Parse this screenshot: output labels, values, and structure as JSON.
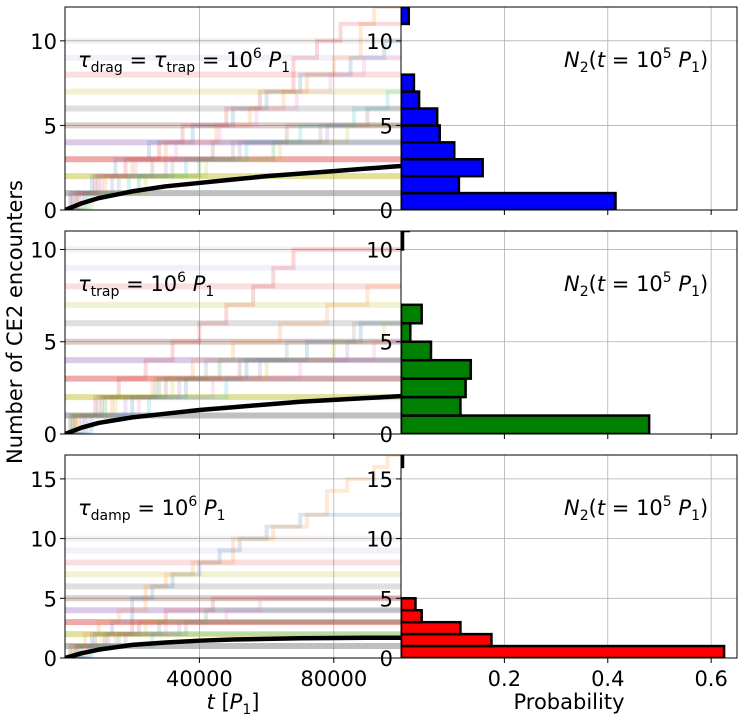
{
  "figure": {
    "ylabel": "Number of CE2 encounters",
    "xlabel_left": "t [P1]",
    "xlabel_right": "Probability"
  },
  "chart_data": [
    {
      "type": "line",
      "panel": "top-left",
      "annotation": "τdrag = τtrap = 10^6 P1",
      "xlim": [
        0,
        100000
      ],
      "ylim": [
        0,
        12
      ],
      "y_ticks": [
        0,
        5,
        10
      ],
      "x_ticks": [
        40000,
        80000
      ],
      "x_tick_labels_shown": false,
      "grid": true,
      "mean_curve": {
        "x": [
          0,
          5000,
          10000,
          20000,
          30000,
          40000,
          50000,
          60000,
          70000,
          80000,
          90000,
          100000
        ],
        "y": [
          0,
          0.4,
          0.7,
          1.1,
          1.4,
          1.6,
          1.8,
          2.0,
          2.15,
          2.3,
          2.45,
          2.6
        ]
      },
      "trajectories": [
        {
          "color": "#1f77b4",
          "steps": [
            [
              2000,
              1
            ],
            [
              8000,
              2
            ],
            [
              15000,
              3
            ],
            [
              25000,
              4
            ],
            [
              38000,
              5
            ],
            [
              50000,
              6
            ],
            [
              60000,
              7
            ],
            [
              70000,
              8
            ],
            [
              85000,
              9
            ],
            [
              95000,
              10
            ]
          ]
        },
        {
          "color": "#ff7f0e",
          "steps": [
            [
              3000,
              1
            ],
            [
              12000,
              2
            ],
            [
              20000,
              3
            ],
            [
              30000,
              4
            ],
            [
              45000,
              5
            ],
            [
              55000,
              6
            ],
            [
              65000,
              7
            ],
            [
              72000,
              8
            ],
            [
              80000,
              9
            ],
            [
              88000,
              11
            ],
            [
              92000,
              12
            ]
          ]
        },
        {
          "color": "#d62728",
          "steps": [
            [
              4000,
              1
            ],
            [
              9000,
              2
            ],
            [
              18000,
              3
            ],
            [
              28000,
              4
            ],
            [
              35000,
              5
            ],
            [
              48000,
              6
            ],
            [
              58000,
              7
            ],
            [
              68000,
              9
            ],
            [
              75000,
              10
            ],
            [
              82000,
              11
            ]
          ]
        },
        {
          "color": "#2ca02c",
          "steps": [
            [
              6000,
              1
            ],
            [
              22000,
              2
            ],
            [
              40000,
              3
            ],
            [
              62000,
              4
            ]
          ]
        },
        {
          "color": "#9467bd",
          "steps": [
            [
              5000,
              1
            ],
            [
              14000,
              2
            ],
            [
              30000,
              3
            ],
            [
              52000,
              4
            ],
            [
              78000,
              5
            ]
          ]
        },
        {
          "color": "#8c564b",
          "steps": [
            [
              1500,
              1
            ],
            [
              10000,
              2
            ],
            [
              26000,
              3
            ],
            [
              44000,
              4
            ],
            [
              66000,
              5
            ],
            [
              90000,
              6
            ]
          ]
        },
        {
          "color": "#17becf",
          "steps": [
            [
              7000,
              1
            ],
            [
              19000,
              2
            ],
            [
              36000,
              3
            ],
            [
              54000,
              4
            ],
            [
              70000,
              5
            ],
            [
              86000,
              6
            ],
            [
              96000,
              7
            ]
          ]
        },
        {
          "color": "#e377c2",
          "steps": [
            [
              2500,
              1
            ],
            [
              11000,
              2
            ],
            [
              21000,
              3
            ],
            [
              33000,
              4
            ],
            [
              46000,
              5
            ],
            [
              57000,
              6
            ],
            [
              69000,
              7
            ],
            [
              79000,
              8
            ],
            [
              89000,
              9
            ]
          ]
        },
        {
          "color": "#bcbd22",
          "steps": [
            [
              8000,
              1
            ],
            [
              24000,
              2
            ],
            [
              42000,
              3
            ],
            [
              64000,
              4
            ],
            [
              84000,
              5
            ]
          ]
        },
        {
          "color": "#7f7f7f",
          "steps": [
            [
              3500,
              1
            ],
            [
              16000,
              2
            ],
            [
              32000,
              3
            ],
            [
              50000,
              4
            ],
            [
              76000,
              5
            ]
          ]
        }
      ]
    },
    {
      "type": "bar",
      "orientation": "horizontal",
      "panel": "top-right",
      "annotation": "N2(t = 10^5 P1)",
      "color": "#0000ff",
      "categories": [
        0,
        1,
        2,
        3,
        4,
        5,
        6,
        7,
        8,
        9,
        10,
        11
      ],
      "values": [
        0.415,
        0.112,
        0.158,
        0.103,
        0.075,
        0.07,
        0.035,
        0.025,
        0.0,
        0.0,
        0.0,
        0.015
      ],
      "xlim": [
        0,
        0.65
      ],
      "ylim": [
        0,
        12
      ],
      "y_ticks": [
        0,
        5,
        10
      ],
      "x_ticks": [
        0.2,
        0.4,
        0.6
      ],
      "x_tick_labels_shown": false,
      "grid": true
    },
    {
      "type": "line",
      "panel": "middle-left",
      "annotation": "τtrap = 10^6 P1",
      "xlim": [
        0,
        100000
      ],
      "ylim": [
        0,
        11
      ],
      "y_ticks": [
        0,
        5,
        10
      ],
      "x_ticks": [
        40000,
        80000
      ],
      "x_tick_labels_shown": false,
      "grid": true,
      "mean_curve": {
        "x": [
          0,
          5000,
          10000,
          20000,
          30000,
          40000,
          50000,
          60000,
          70000,
          80000,
          90000,
          100000
        ],
        "y": [
          0,
          0.35,
          0.6,
          0.9,
          1.1,
          1.3,
          1.45,
          1.6,
          1.75,
          1.85,
          1.95,
          2.05
        ]
      },
      "trajectories": [
        {
          "color": "#d62728",
          "steps": [
            [
              3000,
              1
            ],
            [
              9000,
              2
            ],
            [
              16000,
              3
            ],
            [
              24000,
              4
            ],
            [
              32000,
              5
            ],
            [
              40000,
              6
            ],
            [
              48000,
              7
            ],
            [
              56000,
              8
            ],
            [
              62000,
              9
            ],
            [
              68000,
              10
            ]
          ]
        },
        {
          "color": "#ff7f0e",
          "steps": [
            [
              4000,
              1
            ],
            [
              14000,
              2
            ],
            [
              26000,
              3
            ],
            [
              38000,
              4
            ],
            [
              50000,
              5
            ],
            [
              64000,
              6
            ],
            [
              78000,
              7
            ],
            [
              90000,
              8
            ]
          ]
        },
        {
          "color": "#1f77b4",
          "steps": [
            [
              6000,
              1
            ],
            [
              20000,
              2
            ],
            [
              36000,
              3
            ],
            [
              54000,
              4
            ],
            [
              72000,
              5
            ],
            [
              88000,
              6
            ]
          ]
        },
        {
          "color": "#2ca02c",
          "steps": [
            [
              2000,
              1
            ],
            [
              12000,
              2
            ],
            [
              28000,
              3
            ],
            [
              46000,
              4
            ]
          ]
        },
        {
          "color": "#9467bd",
          "steps": [
            [
              5000,
              1
            ],
            [
              18000,
              2
            ],
            [
              34000,
              3
            ],
            [
              58000,
              4
            ],
            [
              84000,
              5
            ]
          ]
        },
        {
          "color": "#8c564b",
          "steps": [
            [
              1500,
              1
            ],
            [
              11000,
              2
            ],
            [
              30000,
              3
            ],
            [
              52000,
              4
            ]
          ]
        },
        {
          "color": "#e377c2",
          "steps": [
            [
              7000,
              1
            ],
            [
              22000,
              2
            ],
            [
              44000,
              3
            ],
            [
              70000,
              4
            ],
            [
              92000,
              5
            ]
          ]
        },
        {
          "color": "#17becf",
          "steps": [
            [
              8000,
              1
            ],
            [
              25000,
              2
            ],
            [
              48000,
              3
            ]
          ]
        },
        {
          "color": "#bcbd22",
          "steps": [
            [
              3500,
              1
            ],
            [
              15000,
              2
            ],
            [
              32000,
              3
            ],
            [
              60000,
              4
            ],
            [
              80000,
              5
            ],
            [
              95000,
              6
            ]
          ]
        },
        {
          "color": "#7f7f7f",
          "steps": [
            [
              2500,
              1
            ],
            [
              10000,
              2
            ],
            [
              27000,
              3
            ],
            [
              42000,
              4
            ],
            [
              66000,
              5
            ],
            [
              86000,
              6
            ]
          ]
        }
      ]
    },
    {
      "type": "bar",
      "orientation": "horizontal",
      "panel": "middle-right",
      "annotation": "N2(t = 10^5 P1)",
      "color": "#008000",
      "categories": [
        0,
        1,
        2,
        3,
        4,
        5,
        6,
        7,
        8,
        9,
        10,
        11
      ],
      "values": [
        0.48,
        0.115,
        0.125,
        0.135,
        0.058,
        0.018,
        0.04,
        0.0,
        0.0,
        0.0,
        0.003,
        0.015
      ],
      "xlim": [
        0,
        0.65
      ],
      "ylim": [
        0,
        11
      ],
      "y_ticks": [
        0,
        5,
        10
      ],
      "x_ticks": [
        0.2,
        0.4,
        0.6
      ],
      "x_tick_labels_shown": false,
      "grid": true
    },
    {
      "type": "line",
      "panel": "bottom-left",
      "annotation": "τdamp = 10^6 P1",
      "xlim": [
        0,
        100000
      ],
      "ylim": [
        0,
        17
      ],
      "y_ticks": [
        0,
        5,
        10,
        15
      ],
      "x_ticks": [
        40000,
        80000
      ],
      "x_tick_labels": [
        "40000",
        "80000"
      ],
      "xlabel": "t [P1]",
      "grid": true,
      "mean_curve": {
        "x": [
          0,
          5000,
          10000,
          20000,
          30000,
          40000,
          50000,
          60000,
          70000,
          80000,
          90000,
          100000
        ],
        "y": [
          0,
          0.4,
          0.7,
          1.1,
          1.3,
          1.45,
          1.55,
          1.6,
          1.65,
          1.68,
          1.7,
          1.7
        ]
      },
      "trajectories": [
        {
          "color": "#1f77b4",
          "steps": [
            [
              3000,
              1
            ],
            [
              8000,
              2
            ],
            [
              14000,
              3
            ],
            [
              20000,
              5
            ],
            [
              26000,
              6
            ],
            [
              32000,
              7
            ],
            [
              40000,
              8
            ],
            [
              46000,
              9
            ],
            [
              52000,
              10
            ],
            [
              60000,
              11
            ],
            [
              70000,
              12
            ]
          ]
        },
        {
          "color": "#ff7f0e",
          "steps": [
            [
              2000,
              1
            ],
            [
              6000,
              2
            ],
            [
              10000,
              3
            ],
            [
              16000,
              4
            ],
            [
              24000,
              6
            ],
            [
              30000,
              7
            ],
            [
              38000,
              8
            ],
            [
              50000,
              10
            ],
            [
              62000,
              11
            ],
            [
              72000,
              12
            ],
            [
              78000,
              14
            ],
            [
              84000,
              15
            ],
            [
              92000,
              16
            ],
            [
              96000,
              17
            ]
          ]
        },
        {
          "color": "#d62728",
          "steps": [
            [
              4000,
              1
            ],
            [
              12000,
              2
            ],
            [
              20000,
              3
            ],
            [
              30000,
              4
            ],
            [
              44000,
              5
            ]
          ]
        },
        {
          "color": "#2ca02c",
          "steps": [
            [
              5000,
              1
            ],
            [
              16000,
              2
            ],
            [
              28000,
              3
            ],
            [
              42000,
              4
            ]
          ]
        },
        {
          "color": "#9467bd",
          "steps": [
            [
              7000,
              1
            ],
            [
              18000,
              2
            ],
            [
              34000,
              3
            ]
          ]
        },
        {
          "color": "#8c564b",
          "steps": [
            [
              1500,
              1
            ],
            [
              9000,
              2
            ],
            [
              22000,
              3
            ]
          ]
        },
        {
          "color": "#e377c2",
          "steps": [
            [
              6000,
              1
            ],
            [
              15000,
              2
            ],
            [
              30000,
              3
            ],
            [
              48000,
              4
            ],
            [
              58000,
              5
            ]
          ]
        },
        {
          "color": "#17becf",
          "steps": [
            [
              8000,
              1
            ],
            [
              26000,
              2
            ]
          ]
        },
        {
          "color": "#bcbd22",
          "steps": [
            [
              2500,
              1
            ],
            [
              11000,
              2
            ],
            [
              24000,
              3
            ]
          ]
        },
        {
          "color": "#7f7f7f",
          "steps": [
            [
              3500,
              1
            ],
            [
              13000,
              2
            ],
            [
              36000,
              3
            ]
          ]
        }
      ]
    },
    {
      "type": "bar",
      "orientation": "horizontal",
      "panel": "bottom-right",
      "annotation": "N2(t = 10^5 P1)",
      "color": "#ff0000",
      "categories": [
        0,
        1,
        2,
        3,
        4,
        5,
        6,
        7,
        8,
        9,
        10,
        11,
        12,
        13,
        14,
        15,
        16
      ],
      "values": [
        0.625,
        0.175,
        0.115,
        0.04,
        0.028,
        0.0,
        0.0,
        0.0,
        0.0,
        0.0,
        0.0,
        0.0,
        0.0,
        0.0,
        0.0,
        0.0,
        0.003
      ],
      "xlim": [
        0,
        0.65
      ],
      "ylim": [
        0,
        17
      ],
      "y_ticks": [
        0,
        5,
        10,
        15
      ],
      "x_ticks": [
        0.2,
        0.4,
        0.6
      ],
      "x_tick_labels": [
        "0.2",
        "0.4",
        "0.6"
      ],
      "xlabel": "Probability",
      "grid": true
    }
  ]
}
